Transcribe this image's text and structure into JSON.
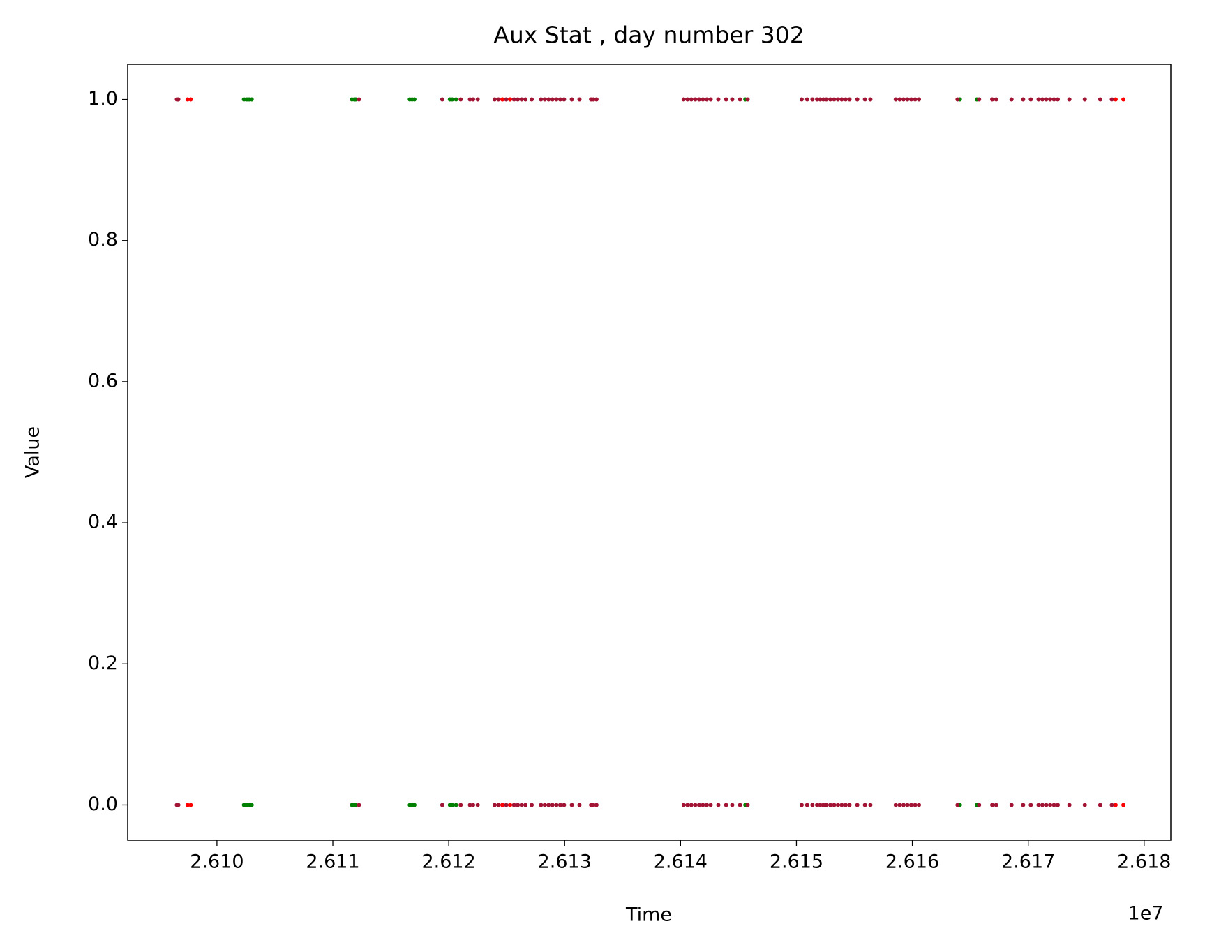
{
  "chart_data": {
    "type": "scatter",
    "title": "Aux Stat , day number 302",
    "x_label": "Time",
    "y_label": "Value",
    "x_offset_label": "1e7",
    "xlim": [
      26092300,
      26182300
    ],
    "ylim": [
      -0.05,
      1.05
    ],
    "xticks": [
      {
        "value": 26100000,
        "label": "2.610"
      },
      {
        "value": 26110000,
        "label": "2.611"
      },
      {
        "value": 26120000,
        "label": "2.612"
      },
      {
        "value": 26130000,
        "label": "2.613"
      },
      {
        "value": 26140000,
        "label": "2.614"
      },
      {
        "value": 26150000,
        "label": "2.615"
      },
      {
        "value": 26160000,
        "label": "2.616"
      },
      {
        "value": 26170000,
        "label": "2.617"
      },
      {
        "value": 26180000,
        "label": "2.618"
      }
    ],
    "yticks": [
      {
        "value": 0,
        "label": "0.0"
      },
      {
        "value": 0.2,
        "label": "0.2"
      },
      {
        "value": 0.4,
        "label": "0.4"
      },
      {
        "value": 0.6,
        "label": "0.6"
      },
      {
        "value": 0.8,
        "label": "0.8"
      },
      {
        "value": 1,
        "label": "1.0"
      }
    ],
    "grid": false,
    "series": [
      {
        "color": "#008000",
        "x": [
          26102330,
          26102530,
          26102660,
          26102800,
          26103000,
          26111650,
          26111850,
          26111980,
          26116640,
          26116840,
          26117040,
          26120100,
          26120300,
          26120630,
          26145590,
          26164100,
          26165560,
          26102330,
          26102530,
          26102660,
          26102800,
          26103000,
          26111650,
          26111850,
          26111980,
          26116640,
          26116840,
          26117040,
          26120100,
          26120300,
          26120630,
          26145590,
          26164100,
          26165560
        ],
        "values": [
          1,
          1,
          1,
          1,
          1,
          1,
          1,
          1,
          1,
          1,
          1,
          1,
          1,
          1,
          1,
          1,
          1,
          0,
          0,
          0,
          0,
          0,
          0,
          0,
          0,
          0,
          0,
          0,
          0,
          0,
          0,
          0,
          0,
          0
        ]
      },
      {
        "color": "#a11434",
        "x": [
          26096540,
          26096670,
          26112250,
          26119440,
          26121030,
          26121830,
          26122100,
          26122500,
          26123960,
          26124290,
          26124630,
          26124960,
          26125290,
          26125630,
          26125960,
          26126290,
          26126620,
          26127160,
          26127960,
          26128290,
          26128620,
          26128950,
          26129290,
          26129620,
          26129950,
          26130620,
          26131280,
          26132280,
          26132480,
          26132750,
          26140270,
          26140600,
          26140930,
          26141270,
          26141600,
          26141930,
          26142270,
          26142600,
          26143260,
          26143930,
          26144460,
          26145130,
          26145790,
          26150450,
          26150920,
          26151380,
          26151780,
          26152050,
          26152320,
          26152580,
          26152920,
          26153250,
          26153580,
          26153910,
          26154250,
          26154580,
          26155250,
          26155910,
          26156380,
          26158570,
          26158910,
          26159240,
          26159570,
          26159900,
          26160240,
          26160570,
          26163900,
          26165760,
          26166890,
          26167230,
          26168560,
          26169560,
          26170220,
          26170890,
          26171220,
          26171550,
          26171890,
          26172220,
          26172550,
          26173550,
          26174880,
          26176210,
          26177210,
          26096540,
          26096670,
          26112250,
          26119440,
          26121030,
          26121830,
          26122100,
          26122500,
          26123960,
          26124290,
          26124630,
          26124960,
          26125290,
          26125630,
          26125960,
          26126290,
          26126620,
          26127160,
          26127960,
          26128290,
          26128620,
          26128950,
          26129290,
          26129620,
          26129950,
          26130620,
          26131280,
          26132280,
          26132480,
          26132750,
          26140270,
          26140600,
          26140930,
          26141270,
          26141600,
          26141930,
          26142270,
          26142600,
          26143260,
          26143930,
          26144460,
          26145130,
          26145790,
          26150450,
          26150920,
          26151380,
          26151780,
          26152050,
          26152320,
          26152580,
          26152920,
          26153250,
          26153580,
          26153910,
          26154250,
          26154580,
          26155250,
          26155910,
          26156380,
          26158570,
          26158910,
          26159240,
          26159570,
          26159900,
          26160240,
          26160570,
          26163900,
          26165760,
          26166890,
          26167230,
          26168560,
          26169560,
          26170220,
          26170890,
          26171220,
          26171550,
          26171890,
          26172220,
          26172550,
          26173550,
          26174880,
          26176210,
          26177210
        ],
        "values": [
          1,
          1,
          1,
          1,
          1,
          1,
          1,
          1,
          1,
          1,
          1,
          1,
          1,
          1,
          1,
          1,
          1,
          1,
          1,
          1,
          1,
          1,
          1,
          1,
          1,
          1,
          1,
          1,
          1,
          1,
          1,
          1,
          1,
          1,
          1,
          1,
          1,
          1,
          1,
          1,
          1,
          1,
          1,
          1,
          1,
          1,
          1,
          1,
          1,
          1,
          1,
          1,
          1,
          1,
          1,
          1,
          1,
          1,
          1,
          1,
          1,
          1,
          1,
          1,
          1,
          1,
          1,
          1,
          1,
          1,
          1,
          1,
          1,
          1,
          1,
          1,
          1,
          1,
          1,
          1,
          1,
          1,
          1,
          0,
          0,
          0,
          0,
          0,
          0,
          0,
          0,
          0,
          0,
          0,
          0,
          0,
          0,
          0,
          0,
          0,
          0,
          0,
          0,
          0,
          0,
          0,
          0,
          0,
          0,
          0,
          0,
          0,
          0,
          0,
          0,
          0,
          0,
          0,
          0,
          0,
          0,
          0,
          0,
          0,
          0,
          0,
          0,
          0,
          0,
          0,
          0,
          0,
          0,
          0,
          0,
          0,
          0,
          0,
          0,
          0,
          0,
          0,
          0,
          0,
          0,
          0,
          0,
          0,
          0,
          0,
          0,
          0,
          0,
          0,
          0,
          0,
          0,
          0,
          0,
          0,
          0,
          0,
          0,
          0,
          0,
          0
        ]
      },
      {
        "color": "#ff0000",
        "x": [
          26097470,
          26097740,
          26124630,
          26125290,
          26177540,
          26178210,
          26097470,
          26097740,
          26124630,
          26125290,
          26177540,
          26178210
        ],
        "values": [
          1,
          1,
          1,
          1,
          1,
          1,
          0,
          0,
          0,
          0,
          0,
          0
        ]
      }
    ]
  }
}
